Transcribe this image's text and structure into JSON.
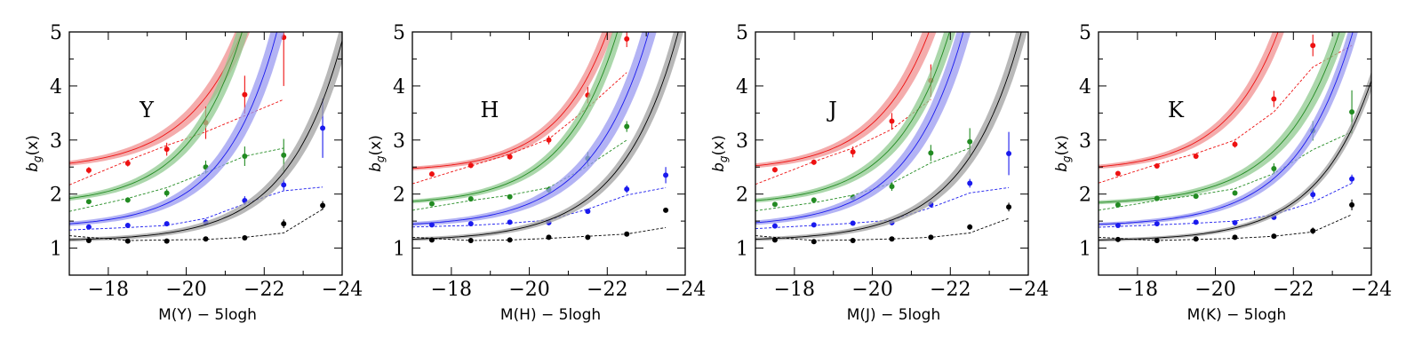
{
  "colors": {
    "red": "#ee1111",
    "green": "#228b22",
    "blue": "#1a1aee",
    "black": "#000000",
    "band_red": "#f09090",
    "band_green": "#8fc98f",
    "band_blue": "#9a9af0",
    "band_black": "#a0a0a0"
  },
  "chart_data": [
    {
      "type": "scatter",
      "label": "Y",
      "xlabel": "M(Y) − 5logh",
      "ylabel": "b_g(x)",
      "xlim": [
        -17,
        -24
      ],
      "ylim": [
        0.5,
        5
      ],
      "xticks": [
        -18,
        -20,
        -22,
        -24
      ],
      "xtick_labels": [
        "−18",
        "−20",
        "−22",
        "−24"
      ],
      "yticks": [
        1,
        2,
        3,
        4,
        5
      ],
      "ytick_labels": [
        "1",
        "2",
        "3",
        "4",
        "5"
      ],
      "x": [
        -17.5,
        -18.5,
        -19.5,
        -20.5,
        -21.5,
        -22.5,
        -23.5
      ],
      "series": [
        {
          "name": "red",
          "color": "#ee1111",
          "band": "#f09090",
          "base": 2.45,
          "amp": 0.12,
          "scale": 1.45,
          "hw": 0.12,
          "values": [
            2.44,
            2.57,
            2.83,
            3.32,
            3.84,
            4.9,
            null
          ],
          "errors": [
            0.06,
            0.06,
            0.12,
            0.3,
            0.35,
            0.9,
            null
          ],
          "dashed": [
            2.32,
            2.62,
            2.9,
            3.15,
            3.45,
            3.75,
            null
          ]
        },
        {
          "name": "green",
          "color": "#228b22",
          "band": "#8fc98f",
          "base": 1.8,
          "amp": 0.12,
          "scale": 1.35,
          "hw": 0.1,
          "values": [
            1.86,
            1.89,
            2.02,
            2.5,
            2.7,
            2.72,
            null
          ],
          "errors": [
            0.04,
            0.05,
            0.07,
            0.12,
            0.18,
            0.3,
            null
          ],
          "dashed": [
            1.76,
            1.92,
            2.12,
            2.4,
            2.7,
            2.85,
            null
          ]
        },
        {
          "name": "blue",
          "color": "#1a1aee",
          "band": "#9a9af0",
          "base": 1.38,
          "amp": 0.07,
          "scale": 1.35,
          "hw": 0.12,
          "values": [
            1.39,
            1.42,
            1.45,
            1.48,
            1.88,
            2.17,
            3.22
          ],
          "errors": [
            0.03,
            0.03,
            0.03,
            0.06,
            0.08,
            0.1,
            0.55
          ],
          "dashed": [
            1.35,
            1.38,
            1.42,
            1.55,
            1.82,
            2.06,
            2.13
          ]
        },
        {
          "name": "black",
          "color": "#000000",
          "band": "#a0a0a0",
          "base": 1.13,
          "amp": 0.025,
          "scale": 1.4,
          "hw": 0.1,
          "values": [
            1.14,
            1.13,
            1.13,
            1.17,
            1.19,
            1.45,
            1.79
          ],
          "errors": [
            0.03,
            0.03,
            0.03,
            0.03,
            0.03,
            0.08,
            0.08
          ],
          "dashed": [
            1.2,
            1.14,
            1.15,
            1.16,
            1.2,
            1.28,
            1.72
          ]
        }
      ]
    },
    {
      "type": "scatter",
      "label": "H",
      "xlabel": "M(H) − 5logh",
      "ylabel": "b_g(x)",
      "xlim": [
        -17,
        -24
      ],
      "ylim": [
        0.5,
        5
      ],
      "xticks": [
        -18,
        -20,
        -22,
        -24
      ],
      "xtick_labels": [
        "−18",
        "−20",
        "−22",
        "−24"
      ],
      "yticks": [
        1,
        2,
        3,
        4,
        5
      ],
      "ytick_labels": [
        "1",
        "2",
        "3",
        "4",
        "5"
      ],
      "x": [
        -17.5,
        -18.5,
        -19.5,
        -20.5,
        -21.5,
        -22.5,
        -23.5
      ],
      "series": [
        {
          "name": "red",
          "color": "#ee1111",
          "band": "#f09090",
          "base": 2.42,
          "amp": 0.055,
          "scale": 1.3,
          "hw": 0.1,
          "values": [
            2.37,
            2.53,
            2.69,
            3.0,
            3.83,
            4.87,
            null
          ],
          "errors": [
            0.05,
            0.05,
            0.05,
            0.08,
            0.15,
            0.15,
            null
          ],
          "dashed": [
            2.3,
            2.52,
            2.74,
            3.02,
            3.6,
            4.25,
            null
          ]
        },
        {
          "name": "green",
          "color": "#228b22",
          "band": "#8fc98f",
          "base": 1.8,
          "amp": 0.065,
          "scale": 1.35,
          "hw": 0.09,
          "values": [
            1.82,
            1.91,
            1.95,
            2.08,
            2.66,
            3.25,
            null
          ],
          "errors": [
            0.04,
            0.04,
            0.04,
            0.06,
            0.12,
            0.1,
            null
          ],
          "dashed": [
            1.76,
            1.88,
            1.98,
            2.12,
            2.52,
            3.0,
            null
          ]
        },
        {
          "name": "blue",
          "color": "#1a1aee",
          "band": "#9a9af0",
          "base": 1.39,
          "amp": 0.055,
          "scale": 1.45,
          "hw": 0.12,
          "values": [
            1.43,
            1.45,
            1.48,
            1.47,
            1.68,
            2.09,
            2.35
          ],
          "errors": [
            0.03,
            0.03,
            0.03,
            0.03,
            0.03,
            0.07,
            0.15
          ],
          "dashed": [
            1.4,
            1.42,
            1.46,
            1.52,
            1.72,
            1.98,
            2.12
          ]
        },
        {
          "name": "black",
          "color": "#000000",
          "band": "#a0a0a0",
          "base": 1.13,
          "amp": 0.035,
          "scale": 1.45,
          "hw": 0.08,
          "values": [
            1.15,
            1.14,
            1.15,
            1.2,
            1.2,
            1.26,
            1.7
          ],
          "errors": [
            0.03,
            0.03,
            0.03,
            0.03,
            0.03,
            0.03,
            0.04
          ],
          "dashed": [
            1.18,
            1.14,
            1.15,
            1.18,
            1.22,
            1.26,
            1.38
          ]
        }
      ]
    },
    {
      "type": "scatter",
      "label": "J",
      "xlabel": "M(J) − 5logh",
      "ylabel": "b_g(x)",
      "xlim": [
        -17,
        -24
      ],
      "ylim": [
        0.5,
        5
      ],
      "xticks": [
        -18,
        -20,
        -22,
        -24
      ],
      "xtick_labels": [
        "−18",
        "−20",
        "−22",
        "−24"
      ],
      "yticks": [
        1,
        2,
        3,
        4,
        5
      ],
      "ytick_labels": [
        "1",
        "2",
        "3",
        "4",
        "5"
      ],
      "x": [
        -17.5,
        -18.5,
        -19.5,
        -20.5,
        -21.5,
        -22.5,
        -23.5
      ],
      "series": [
        {
          "name": "red",
          "color": "#ee1111",
          "band": "#f09090",
          "base": 2.43,
          "amp": 0.095,
          "scale": 1.35,
          "hw": 0.12,
          "values": [
            2.45,
            2.59,
            2.78,
            3.35,
            4.1,
            null,
            null
          ],
          "errors": [
            0.05,
            0.05,
            0.1,
            0.15,
            0.3,
            null,
            null
          ],
          "dashed": [
            2.32,
            2.6,
            2.85,
            3.2,
            3.75,
            null,
            null
          ]
        },
        {
          "name": "green",
          "color": "#228b22",
          "band": "#8fc98f",
          "base": 1.8,
          "amp": 0.08,
          "scale": 1.35,
          "hw": 0.1,
          "values": [
            1.81,
            1.89,
            1.94,
            2.14,
            2.76,
            2.97,
            null
          ],
          "errors": [
            0.04,
            0.04,
            0.05,
            0.08,
            0.15,
            0.25,
            null
          ],
          "dashed": [
            1.74,
            1.84,
            1.98,
            2.2,
            2.58,
            2.85,
            null
          ]
        },
        {
          "name": "blue",
          "color": "#1a1aee",
          "band": "#9a9af0",
          "base": 1.39,
          "amp": 0.08,
          "scale": 1.4,
          "hw": 0.12,
          "values": [
            1.41,
            1.43,
            1.46,
            1.47,
            1.81,
            2.2,
            2.75
          ],
          "errors": [
            0.03,
            0.03,
            0.03,
            0.03,
            0.06,
            0.08,
            0.4
          ],
          "dashed": [
            1.38,
            1.42,
            1.46,
            1.52,
            1.75,
            2.02,
            2.12
          ]
        },
        {
          "name": "black",
          "color": "#000000",
          "band": "#a0a0a0",
          "base": 1.13,
          "amp": 0.035,
          "scale": 1.45,
          "hw": 0.09,
          "values": [
            1.15,
            1.12,
            1.14,
            1.17,
            1.2,
            1.39,
            1.76
          ],
          "errors": [
            0.03,
            0.03,
            0.03,
            0.03,
            0.03,
            0.05,
            0.08
          ],
          "dashed": [
            1.2,
            1.14,
            1.15,
            1.17,
            1.2,
            1.28,
            1.55
          ]
        }
      ]
    },
    {
      "type": "scatter",
      "label": "K",
      "xlabel": "M(K) − 5logh",
      "ylabel": "b_g(x)",
      "xlim": [
        -17,
        -24
      ],
      "ylim": [
        0.5,
        5
      ],
      "xticks": [
        -18,
        -20,
        -22,
        -24
      ],
      "xtick_labels": [
        "−18",
        "−20",
        "−22",
        "−24"
      ],
      "yticks": [
        1,
        2,
        3,
        4,
        5
      ],
      "ytick_labels": [
        "1",
        "2",
        "3",
        "4",
        "5"
      ],
      "x": [
        -17.5,
        -18.5,
        -19.5,
        -20.5,
        -21.5,
        -22.5,
        -23.5
      ],
      "series": [
        {
          "name": "red",
          "color": "#ee1111",
          "band": "#f09090",
          "base": 2.42,
          "amp": 0.085,
          "scale": 1.35,
          "hw": 0.1,
          "values": [
            2.38,
            2.52,
            2.7,
            2.92,
            3.76,
            4.75,
            null
          ],
          "errors": [
            0.04,
            0.04,
            0.05,
            0.06,
            0.15,
            0.2,
            null
          ],
          "dashed": [
            2.32,
            2.55,
            2.75,
            3.0,
            3.52,
            4.35,
            4.75
          ]
        },
        {
          "name": "green",
          "color": "#228b22",
          "band": "#8fc98f",
          "base": 1.8,
          "amp": 0.045,
          "scale": 1.45,
          "hw": 0.1,
          "values": [
            1.8,
            1.92,
            1.96,
            2.02,
            2.47,
            3.17,
            3.52
          ],
          "errors": [
            0.04,
            0.04,
            0.04,
            0.05,
            0.1,
            0.18,
            0.4
          ],
          "dashed": [
            1.76,
            1.88,
            1.98,
            2.1,
            2.38,
            2.82,
            3.15
          ]
        },
        {
          "name": "blue",
          "color": "#1a1aee",
          "band": "#9a9af0",
          "base": 1.4,
          "amp": 0.04,
          "scale": 1.45,
          "hw": 0.08,
          "values": [
            1.42,
            1.45,
            1.48,
            1.47,
            1.57,
            1.99,
            2.28
          ],
          "errors": [
            0.03,
            0.03,
            0.03,
            0.03,
            0.04,
            0.08,
            0.08
          ],
          "dashed": [
            1.4,
            1.43,
            1.46,
            1.5,
            1.62,
            1.85,
            2.2
          ]
        },
        {
          "name": "black",
          "color": "#000000",
          "band": "#a0a0a0",
          "base": 1.13,
          "amp": 0.02,
          "scale": 1.4,
          "hw": 0.05,
          "values": [
            1.16,
            1.14,
            1.17,
            1.2,
            1.22,
            1.32,
            1.8
          ],
          "errors": [
            0.03,
            0.03,
            0.03,
            0.03,
            0.03,
            0.06,
            0.1
          ],
          "dashed": [
            1.18,
            1.14,
            1.16,
            1.18,
            1.22,
            1.3,
            1.62
          ]
        }
      ]
    }
  ]
}
